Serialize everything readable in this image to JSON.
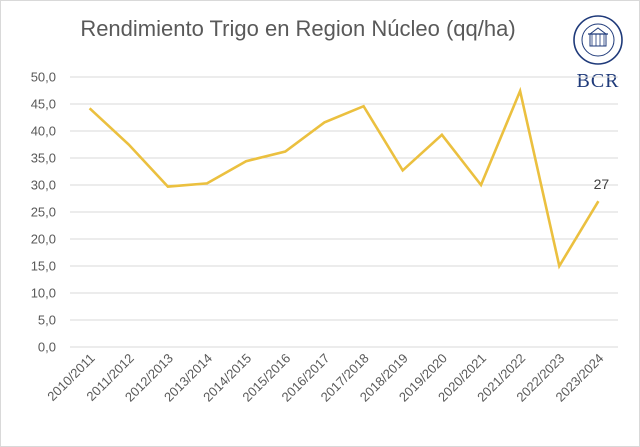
{
  "colors": {
    "series": "#EBC03F",
    "grid": "#d9d9d9",
    "text": "#595959",
    "logo": "#1f3a7a"
  },
  "logo": {
    "text": "BCR",
    "ring_text": "BOLSA DE COMERCIO DE ROSARIO"
  },
  "chart_data": {
    "type": "line",
    "title": "Rendimiento Trigo en Region Núcleo (qq/ha)",
    "xlabel": "",
    "ylabel": "",
    "ylim": [
      0,
      50
    ],
    "ytick_step": 5,
    "ytick_labels": [
      "0,0",
      "5,0",
      "10,0",
      "15,0",
      "20,0",
      "25,0",
      "30,0",
      "35,0",
      "40,0",
      "45,0",
      "50,0"
    ],
    "grid": true,
    "legend": "none",
    "categories": [
      "2010/2011",
      "2011/2012",
      "2012/2013",
      "2013/2014",
      "2014/2015",
      "2015/2016",
      "2016/2017",
      "2017/2018",
      "2018/2019",
      "2019/2020",
      "2020/2021",
      "2021/2022",
      "2022/2023",
      "2023/2024"
    ],
    "series": [
      {
        "values": [
          44.2,
          37.5,
          29.7,
          30.3,
          34.4,
          36.2,
          41.6,
          44.6,
          32.7,
          39.3,
          30.0,
          47.4,
          15.0,
          27.0
        ]
      }
    ],
    "data_labels": [
      {
        "index": 13,
        "text": "27"
      }
    ]
  }
}
